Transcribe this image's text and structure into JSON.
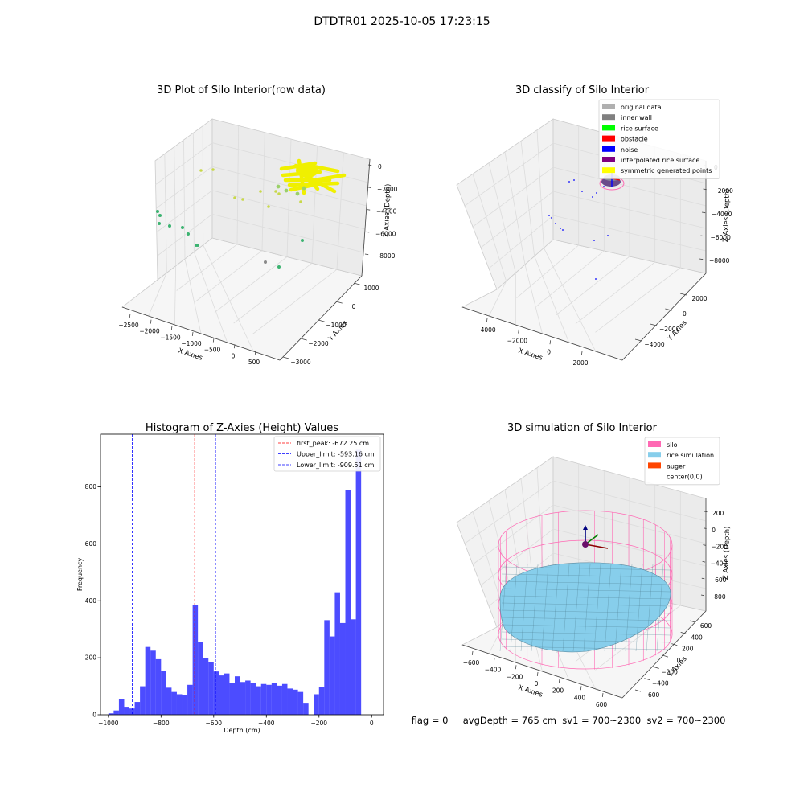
{
  "figure": {
    "suptitle": "DTDTR01 2025-10-05 17:23:15",
    "footer": "flag = 0     avgDepth = 765 cm  sv1 = 700~2300  sv2 = 700~2300"
  },
  "colors": {
    "hist_bar": "#0000ff",
    "first_peak": "#ff0000",
    "limits": "#0000ff",
    "silo": "#ff69b4",
    "rice": "#87ceeb",
    "auger": "#ff4500",
    "yellow_points": "#f0f000",
    "green_points": "#3cb371"
  },
  "chart_data": [
    {
      "type": "scatter",
      "title": "3D Plot of Silo Interior(row data)",
      "xlabel": "X Axies",
      "ylabel": "Y Axies",
      "zlabel": "Z Axies (Depth)",
      "xticks": [
        "−2500",
        "−2000",
        "−1500",
        "−1000",
        "−500",
        "0",
        "500"
      ],
      "yticks": [
        "1000",
        "0",
        "−1000",
        "−2000",
        "−3000"
      ],
      "zticks": [
        "0",
        "−2000",
        "−4000",
        "−6000",
        "−8000"
      ],
      "xlim": [
        -2700,
        700
      ],
      "ylim": [
        -3400,
        1200
      ],
      "zlim": [
        -9000,
        500
      ],
      "grid": true
    },
    {
      "type": "scatter",
      "title": "3D classify of Silo Interior",
      "xlabel": "X Axies",
      "ylabel": "Y Axies",
      "zlabel": "Z Axies (Depth)",
      "xticks": [
        "−4000",
        "−2000",
        "0",
        "2000"
      ],
      "yticks": [
        "2000",
        "0",
        "−2000",
        "−4000"
      ],
      "zticks": [
        "0",
        "−2000",
        "−4000",
        "−6000",
        "−8000"
      ],
      "legend_position": "upper-right",
      "legend": [
        {
          "label": "original data",
          "color": "#b0b0b0"
        },
        {
          "label": "inner wall",
          "color": "#808080"
        },
        {
          "label": "rice surface",
          "color": "#00ff00"
        },
        {
          "label": "obstacle",
          "color": "#ff0000"
        },
        {
          "label": "noise",
          "color": "#0000ff"
        },
        {
          "label": "interpolated rice surface",
          "color": "#800080"
        },
        {
          "label": "symmetric generated points",
          "color": "#ffff00"
        }
      ],
      "grid": true
    },
    {
      "type": "bar",
      "title": "Histogram of Z-Axies (Height) Values",
      "xlabel": "Depth (cm)",
      "ylabel": "Frequency",
      "xlim": [
        -1030,
        45
      ],
      "ylim": [
        0,
        985
      ],
      "xticks": [
        -1000,
        -800,
        -600,
        -400,
        -200,
        0
      ],
      "xtick_labels": [
        "−1000",
        "−800",
        "−600",
        "−400",
        "−200",
        "0"
      ],
      "yticks": [
        0,
        200,
        400,
        600,
        800
      ],
      "bin_start": -1000,
      "bin_width": 20,
      "values": [
        5,
        15,
        55,
        28,
        22,
        45,
        100,
        238,
        225,
        195,
        155,
        95,
        80,
        72,
        68,
        105,
        385,
        255,
        198,
        185,
        152,
        138,
        145,
        112,
        135,
        115,
        120,
        112,
        100,
        108,
        105,
        112,
        102,
        108,
        92,
        88,
        80,
        42,
        0,
        72,
        98,
        332,
        275,
        430,
        322,
        788,
        335,
        930
      ],
      "vlines": [
        {
          "label": "first_peak: -672.25 cm",
          "x": -672.25,
          "color": "#ff0000"
        },
        {
          "label": "Upper_limit: -593.16 cm",
          "x": -593.16,
          "color": "#0000ff"
        },
        {
          "label": "Lower_limit: -909.51 cm",
          "x": -909.51,
          "color": "#0000ff"
        }
      ],
      "legend_position": "upper-right"
    },
    {
      "type": "surface",
      "title": "3D simulation of Silo Interior",
      "xlabel": "X Axies",
      "ylabel": "Y Axies",
      "zlabel": "Z Axies (Depth)",
      "xticks": [
        "−600",
        "−400",
        "−200",
        "0",
        "200",
        "400",
        "600"
      ],
      "yticks": [
        "600",
        "400",
        "200",
        "0",
        "−200",
        "−400",
        "−600"
      ],
      "zticks": [
        "200",
        "0",
        "−200",
        "−400",
        "−600",
        "−800"
      ],
      "legend_position": "upper-right",
      "legend": [
        {
          "label": "silo",
          "color": "#ff69b4"
        },
        {
          "label": "rice simulation",
          "color": "#87ceeb"
        },
        {
          "label": "auger",
          "color": "#ff4500"
        },
        {
          "label": "center(0,0)",
          "color": ""
        }
      ],
      "grid": true
    }
  ]
}
